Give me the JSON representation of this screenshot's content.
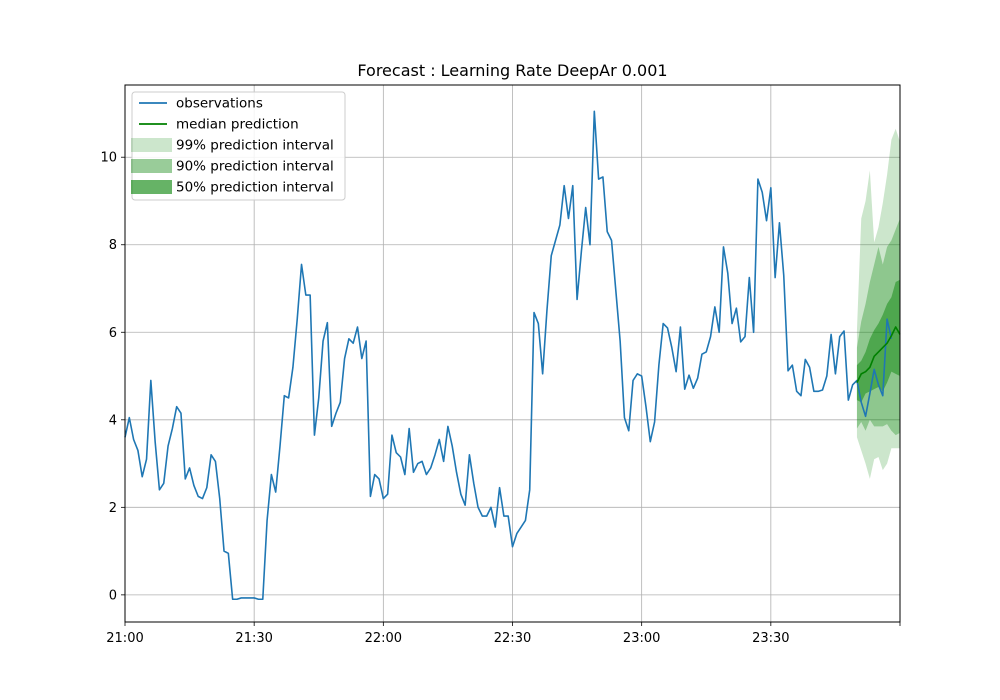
{
  "chart_data": {
    "type": "line",
    "title": "Forecast : Learning Rate DeepAr 0.001",
    "xlabel": "",
    "ylabel": "",
    "x_unit": "minutes",
    "x_start": "21:00",
    "x_step_minutes": 1,
    "xlim": [
      0,
      180
    ],
    "ylim": [
      -0.62,
      11.65
    ],
    "grid": true,
    "legend_position": "top-left",
    "x_ticks": [
      {
        "value": 0,
        "label": "21:00"
      },
      {
        "value": 30,
        "label": "21:30"
      },
      {
        "value": 60,
        "label": "22:00"
      },
      {
        "value": 90,
        "label": "22:30"
      },
      {
        "value": 120,
        "label": "23:00"
      },
      {
        "value": 150,
        "label": "23:30"
      },
      {
        "value": 180,
        "label": ""
      }
    ],
    "y_ticks": [
      0,
      2,
      4,
      6,
      8,
      10
    ],
    "legend": [
      {
        "label": "observations",
        "kind": "line",
        "color": "#1f77b4"
      },
      {
        "label": "median prediction",
        "kind": "line",
        "color": "#008000"
      },
      {
        "label": "99% prediction interval",
        "kind": "patch",
        "color": "#008000",
        "opacity": 0.2
      },
      {
        "label": "90% prediction interval",
        "kind": "patch",
        "color": "#008000",
        "opacity": 0.4
      },
      {
        "label": "50% prediction interval",
        "kind": "patch",
        "color": "#008000",
        "opacity": 0.6
      }
    ],
    "observations": {
      "name": "observations",
      "color": "#1f77b4",
      "x_start": 0,
      "values": [
        3.6,
        4.05,
        3.55,
        3.3,
        2.7,
        3.1,
        4.9,
        3.5,
        2.4,
        2.55,
        3.4,
        3.8,
        4.3,
        4.15,
        2.65,
        2.9,
        2.5,
        2.25,
        2.2,
        2.45,
        3.2,
        3.05,
        2.2,
        1.0,
        0.95,
        -0.1,
        -0.1,
        -0.07,
        -0.07,
        -0.07,
        -0.07,
        -0.1,
        -0.1,
        1.7,
        2.75,
        2.35,
        3.4,
        4.55,
        4.5,
        5.2,
        6.3,
        7.55,
        6.85,
        6.85,
        3.65,
        4.5,
        5.8,
        6.22,
        3.85,
        4.15,
        4.4,
        5.4,
        5.85,
        5.75,
        6.12,
        5.4,
        5.8,
        2.25,
        2.75,
        2.65,
        2.2,
        2.3,
        3.65,
        3.25,
        3.15,
        2.75,
        3.8,
        2.8,
        3.0,
        3.05,
        2.75,
        2.9,
        3.2,
        3.55,
        3.05,
        3.85,
        3.4,
        2.8,
        2.3,
        2.05,
        3.2,
        2.55,
        2.0,
        1.8,
        1.8,
        2.0,
        1.55,
        2.45,
        1.8,
        1.8,
        1.1,
        1.4,
        1.55,
        1.7,
        2.4,
        6.45,
        6.2,
        5.05,
        6.5,
        7.75,
        8.1,
        8.45,
        9.35,
        8.6,
        9.35,
        6.75,
        7.85,
        8.85,
        8.0,
        11.05,
        9.5,
        9.55,
        8.3,
        8.1,
        6.95,
        5.8,
        4.05,
        3.75,
        4.9,
        5.05,
        5.0,
        4.3,
        3.5,
        3.95,
        5.25,
        6.2,
        6.1,
        5.65,
        5.1,
        6.12,
        4.7,
        5.02,
        4.72,
        4.95,
        5.5,
        5.55,
        5.9,
        6.58,
        6.0,
        7.95,
        7.35,
        6.2,
        6.55,
        5.78,
        5.9,
        7.25,
        6.0,
        9.5,
        9.2,
        8.55,
        9.3,
        7.25,
        8.5,
        7.3,
        5.12,
        5.25,
        4.65,
        4.55,
        5.38,
        5.2,
        4.65,
        4.65,
        4.68,
        5.0,
        5.95,
        5.05,
        5.9,
        6.03,
        4.45,
        4.8,
        4.9,
        4.4,
        4.08,
        4.6,
        5.15,
        4.8,
        4.55,
        6.3,
        5.85
      ]
    },
    "forecast": {
      "x_start": 170,
      "median": [
        4.85,
        5.05,
        5.1,
        5.2,
        5.45,
        5.55,
        5.65,
        5.75,
        5.92,
        6.12,
        5.95
      ],
      "interval_99": {
        "lower": [
          3.6,
          3.3,
          3.0,
          2.65,
          3.1,
          3.15,
          2.85,
          3.0,
          3.35,
          3.35,
          3.35
        ],
        "upper": [
          6.05,
          8.6,
          9.0,
          9.7,
          8.05,
          8.4,
          8.95,
          9.6,
          10.4,
          10.65,
          10.35
        ]
      },
      "interval_90": {
        "lower": [
          3.8,
          3.95,
          3.75,
          4.0,
          3.85,
          3.85,
          3.85,
          3.9,
          3.75,
          3.65,
          3.7
        ],
        "upper": [
          5.65,
          6.25,
          6.65,
          7.15,
          7.55,
          7.95,
          7.55,
          7.95,
          8.1,
          8.35,
          8.6
        ]
      },
      "interval_50": {
        "lower": [
          4.45,
          4.4,
          4.6,
          4.65,
          4.7,
          4.75,
          4.65,
          4.85,
          5.1,
          5.05,
          5.0
        ],
        "upper": [
          5.25,
          5.35,
          5.55,
          5.85,
          6.05,
          6.2,
          6.4,
          6.65,
          6.8,
          7.15,
          7.2
        ]
      }
    }
  }
}
